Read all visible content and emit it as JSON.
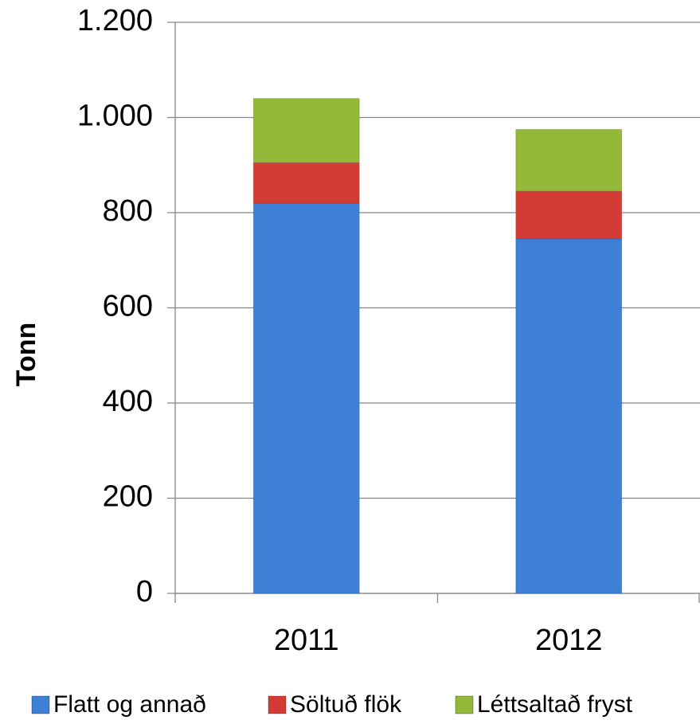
{
  "chart_data": {
    "type": "stacked_bar",
    "y_label": "Tonn",
    "categories": [
      "2011",
      "2012"
    ],
    "series": [
      {
        "name": "Flatt og annað",
        "color": "#3f7fd6",
        "values": [
          820,
          745
        ]
      },
      {
        "name": "Söltuð flök",
        "color": "#d33c35",
        "values": [
          85,
          100
        ]
      },
      {
        "name": "Léttsaltað fryst",
        "color": "#93b83a",
        "values": [
          135,
          130
        ]
      }
    ],
    "ylim": [
      0,
      1200
    ],
    "yticks": [
      0,
      200,
      400,
      600,
      800,
      {
        "value": 1000,
        "label": "1.000"
      },
      {
        "value": 1200,
        "label": "1.200"
      }
    ],
    "grid": true,
    "legend": "bottom"
  }
}
